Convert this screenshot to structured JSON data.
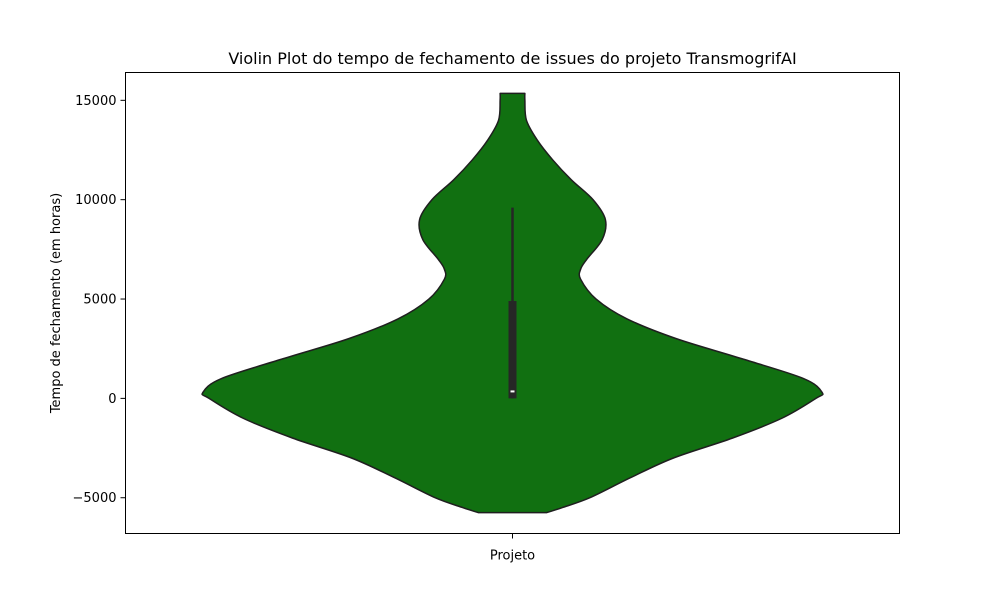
{
  "chart_data": {
    "type": "violin",
    "title": "Violin Plot do tempo de fechamento de issues do projeto TransmogrifAI",
    "xlabel": "",
    "ylabel": "Tempo de fechamento (em horas)",
    "categories": [
      "Projeto"
    ],
    "ylim": [
      -6800,
      16400
    ],
    "yticks": [
      -5000,
      0,
      5000,
      10000,
      15000
    ],
    "ytick_labels": [
      "−5000",
      "0",
      "5000",
      "10000",
      "15000"
    ],
    "grid": false,
    "legend": "none",
    "fill_color": "#117011",
    "edge_color": "#1f1f1f",
    "box_color": "#262626",
    "median_color": "#ffffff",
    "violin": {
      "y_min": -5750,
      "y_max": 15350,
      "max_half_width_fraction": 0.4,
      "density_profile": [
        [
          -5750,
          0.11
        ],
        [
          -5500,
          0.16
        ],
        [
          -5000,
          0.25
        ],
        [
          -4000,
          0.38
        ],
        [
          -3000,
          0.52
        ],
        [
          -2000,
          0.71
        ],
        [
          -1000,
          0.87
        ],
        [
          0,
          0.98
        ],
        [
          300,
          1.0
        ],
        [
          1000,
          0.94
        ],
        [
          2000,
          0.74
        ],
        [
          3000,
          0.53
        ],
        [
          4000,
          0.37
        ],
        [
          5000,
          0.27
        ],
        [
          6000,
          0.22
        ],
        [
          6500,
          0.22
        ],
        [
          7000,
          0.24
        ],
        [
          8000,
          0.29
        ],
        [
          9000,
          0.3
        ],
        [
          10000,
          0.26
        ],
        [
          11000,
          0.19
        ],
        [
          12000,
          0.13
        ],
        [
          13000,
          0.08
        ],
        [
          14000,
          0.045
        ],
        [
          15000,
          0.04
        ],
        [
          15350,
          0.04
        ]
      ]
    },
    "box": {
      "whisker_low": 0,
      "q1": 0,
      "median": 350,
      "q3": 4900,
      "whisker_high": 9600
    }
  }
}
